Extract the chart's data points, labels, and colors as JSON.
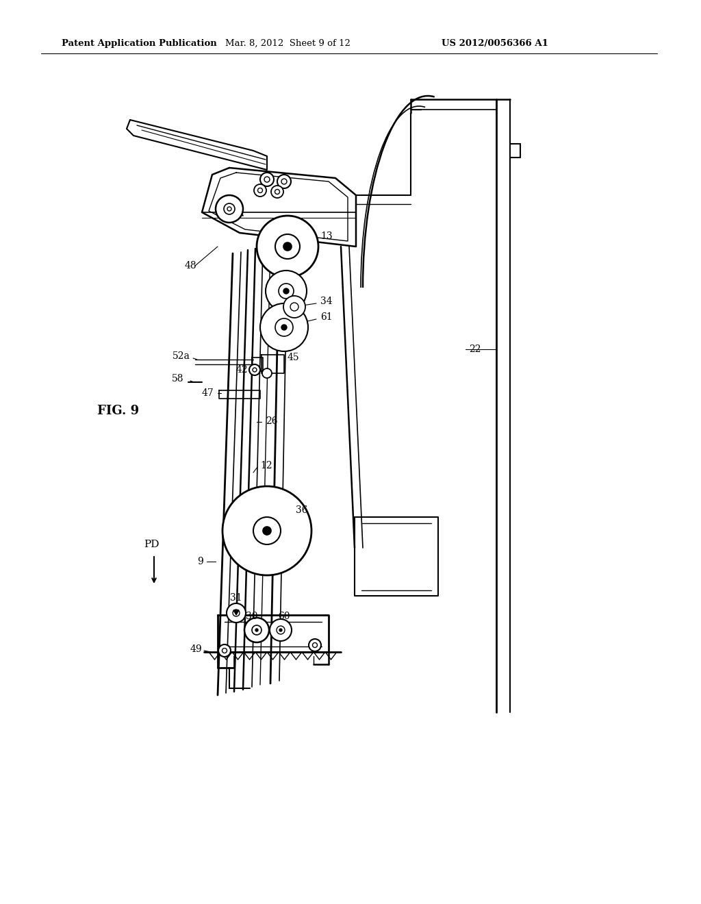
{
  "background_color": "#ffffff",
  "header_left": "Patent Application Publication",
  "header_mid": "Mar. 8, 2012  Sheet 9 of 12",
  "header_right": "US 2012/0056366 A1",
  "line_color": "#000000",
  "fig_label": "FIG. 9"
}
